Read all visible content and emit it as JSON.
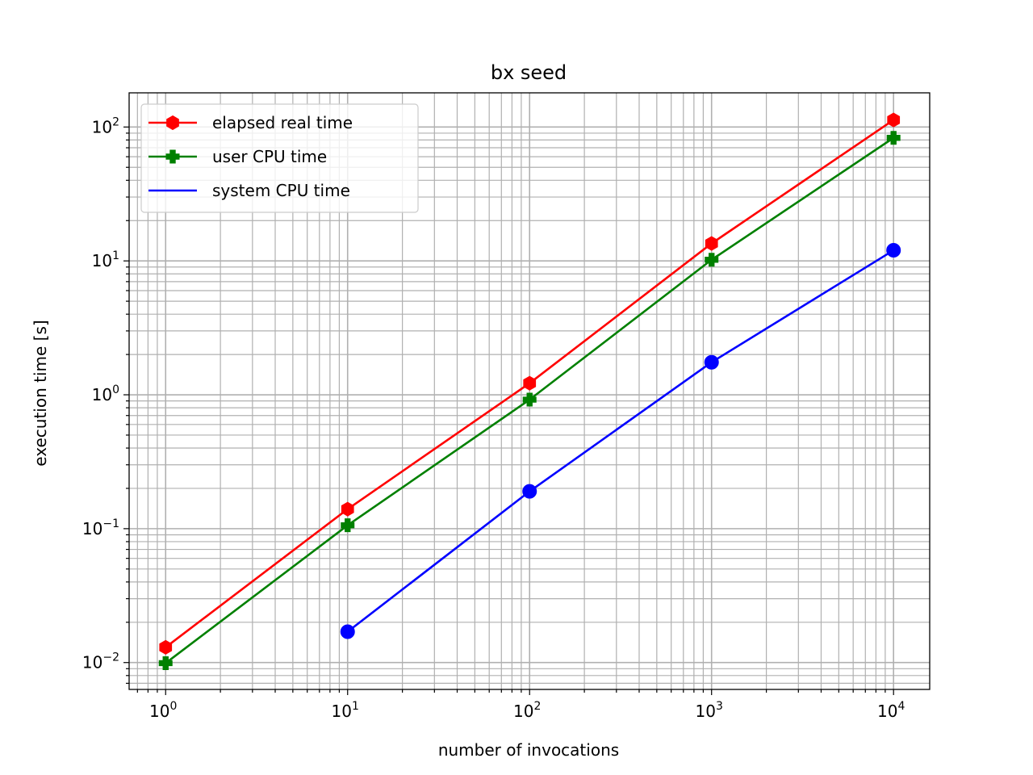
{
  "chart_data": {
    "type": "line",
    "title": "bx seed",
    "xlabel": "number of invocations",
    "ylabel": "execution time [s]",
    "xscale": "log",
    "yscale": "log",
    "xlim": [
      0.63,
      15800
    ],
    "ylim": [
      0.0063,
      180
    ],
    "grid": "major-and-minor",
    "legend_position": "top-left",
    "x_tick_values": [
      1,
      10,
      100,
      1000,
      10000
    ],
    "x_tick_labels": [
      {
        "base": "10",
        "exp": "0"
      },
      {
        "base": "10",
        "exp": "1"
      },
      {
        "base": "10",
        "exp": "2"
      },
      {
        "base": "10",
        "exp": "3"
      },
      {
        "base": "10",
        "exp": "4"
      }
    ],
    "y_tick_values": [
      0.01,
      0.1,
      1,
      10,
      100
    ],
    "y_tick_labels": [
      {
        "base": "10",
        "exp": "−2"
      },
      {
        "base": "10",
        "exp": "−1"
      },
      {
        "base": "10",
        "exp": "0"
      },
      {
        "base": "10",
        "exp": "1"
      },
      {
        "base": "10",
        "exp": "2"
      }
    ],
    "series": [
      {
        "name": "elapsed real time",
        "color": "#ff0000",
        "marker": "hexagon",
        "x": [
          1,
          10,
          100,
          1000,
          10000
        ],
        "y": [
          0.013,
          0.14,
          1.22,
          13.5,
          113
        ]
      },
      {
        "name": "user CPU time",
        "color": "#008000",
        "marker": "plus-filled",
        "x": [
          1,
          10,
          100,
          1000,
          10000
        ],
        "y": [
          0.0099,
          0.106,
          0.92,
          10.2,
          83
        ]
      },
      {
        "name": "system CPU time",
        "color": "#0000ff",
        "marker": "circle",
        "x": [
          10,
          100,
          1000,
          10000
        ],
        "y": [
          0.017,
          0.19,
          1.75,
          12
        ]
      }
    ]
  }
}
